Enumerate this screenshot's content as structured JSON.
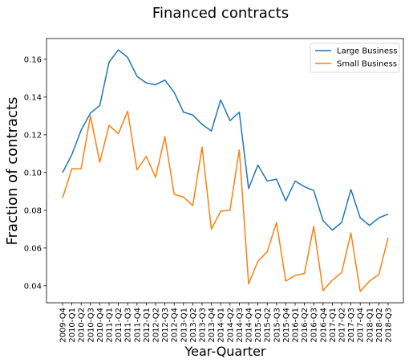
{
  "chart_data": {
    "type": "line",
    "title": "Financed contracts",
    "xlabel": "Year-Quarter",
    "ylabel": "Fraction of contracts",
    "categories": [
      "2009-Q4",
      "2010-Q1",
      "2010-Q2",
      "2010-Q3",
      "2010-Q4",
      "2011-Q1",
      "2011-Q2",
      "2011-Q3",
      "2011-Q4",
      "2012-Q1",
      "2012-Q2",
      "2012-Q3",
      "2012-Q4",
      "2013-Q1",
      "2013-Q2",
      "2013-Q3",
      "2013-Q4",
      "2014-Q1",
      "2014-Q2",
      "2014-Q3",
      "2014-Q4",
      "2015-Q1",
      "2015-Q2",
      "2015-Q3",
      "2015-Q4",
      "2016-Q1",
      "2016-Q2",
      "2016-Q3",
      "2016-Q4",
      "2017-Q1",
      "2017-Q2",
      "2017-Q3",
      "2017-Q4",
      "2018-Q1",
      "2018-Q2",
      "2018-Q3"
    ],
    "series": [
      {
        "name": "Large Business",
        "color": "#1f77b4",
        "values": [
          0.1,
          0.1095,
          0.1225,
          0.1315,
          0.1355,
          0.1585,
          0.165,
          0.161,
          0.151,
          0.1475,
          0.1465,
          0.149,
          0.1425,
          0.132,
          0.1305,
          0.1255,
          0.122,
          0.1385,
          0.1275,
          0.132,
          0.0915,
          0.104,
          0.0955,
          0.0965,
          0.085,
          0.0955,
          0.0925,
          0.0905,
          0.0745,
          0.0695,
          0.0735,
          0.091,
          0.076,
          0.072,
          0.076,
          0.078
        ]
      },
      {
        "name": "Small Business",
        "color": "#ff7f0e",
        "values": [
          0.0865,
          0.102,
          0.102,
          0.13,
          0.1055,
          0.125,
          0.1205,
          0.1325,
          0.1015,
          0.1085,
          0.0975,
          0.119,
          0.0885,
          0.087,
          0.0825,
          0.1135,
          0.07,
          0.0795,
          0.08,
          0.112,
          0.041,
          0.053,
          0.058,
          0.0735,
          0.0425,
          0.0455,
          0.0465,
          0.0715,
          0.0375,
          0.043,
          0.047,
          0.068,
          0.037,
          0.0425,
          0.046,
          0.0655
        ]
      }
    ],
    "yticks": [
      "0.04",
      "0.06",
      "0.08",
      "0.10",
      "0.12",
      "0.14",
      "0.16"
    ],
    "ylim": [
      0.031,
      0.171
    ],
    "grid": false,
    "legend": "top-right"
  }
}
